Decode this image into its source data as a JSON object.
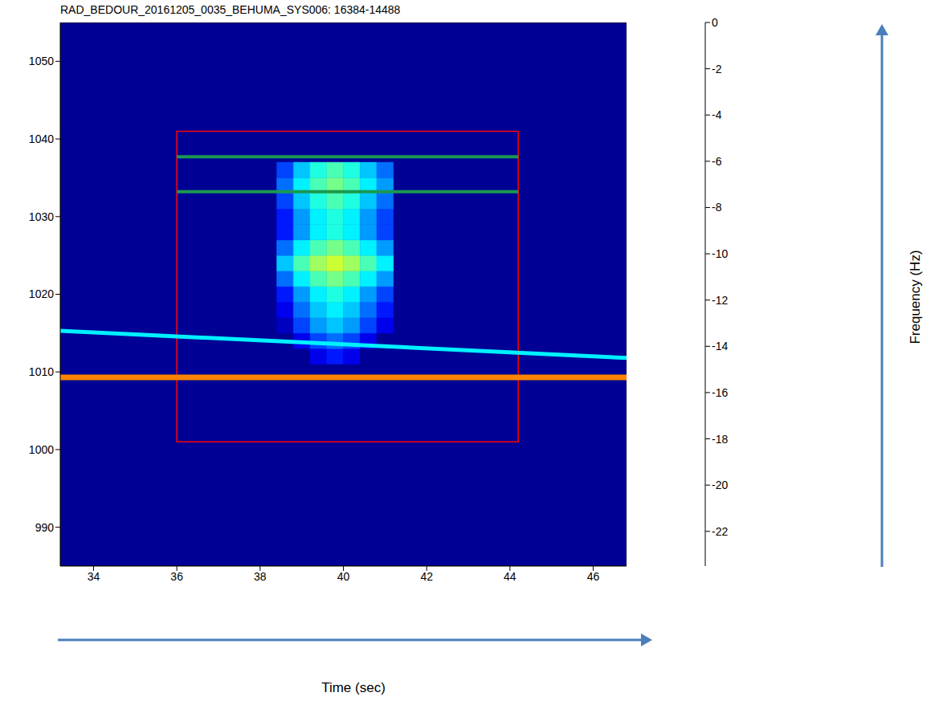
{
  "chart_data": {
    "type": "heatmap",
    "title": "RAD_BEDOUR_20161205_0035_BEHUMA_SYS006: 16384-14488",
    "x_label": "Time (sec)",
    "y_label": "Frequency (Hz)",
    "xlim": [
      33.2,
      46.8
    ],
    "xticks": [
      34,
      36,
      38,
      40,
      42,
      44,
      46
    ],
    "ylim": [
      985,
      1055
    ],
    "yticks": [
      990,
      1000,
      1010,
      1020,
      1030,
      1040,
      1050
    ],
    "background": -23,
    "cells": {
      "x_edges": [
        38.4,
        38.8,
        39.2,
        39.6,
        40.0,
        40.4,
        40.8,
        41.2
      ],
      "y_edges": [
        1011,
        1013,
        1015,
        1017,
        1019,
        1021,
        1023,
        1025,
        1027,
        1029,
        1031,
        1033,
        1035,
        1037
      ],
      "values": [
        [
          -23,
          -23,
          -21,
          -20,
          -21,
          -23,
          -23
        ],
        [
          -23,
          -21,
          -19,
          -18,
          -19,
          -21,
          -23
        ],
        [
          -22,
          -19,
          -17,
          -16,
          -17,
          -19,
          -21
        ],
        [
          -21,
          -18,
          -16,
          -15,
          -16,
          -18,
          -20
        ],
        [
          -20,
          -17,
          -15,
          -14,
          -15,
          -17,
          -19
        ],
        [
          -18,
          -15,
          -13,
          -12,
          -13,
          -15,
          -17
        ],
        [
          -16,
          -13,
          -11,
          -10,
          -11,
          -13,
          -15
        ],
        [
          -18,
          -15,
          -13,
          -12,
          -13,
          -15,
          -17
        ],
        [
          -20,
          -17,
          -15,
          -14,
          -15,
          -17,
          -19
        ],
        [
          -20,
          -17,
          -15,
          -14,
          -15,
          -17,
          -19
        ],
        [
          -19,
          -16,
          -14,
          -13,
          -14,
          -16,
          -18
        ],
        [
          -18,
          -15,
          -13,
          -12,
          -13,
          -15,
          -17
        ],
        [
          -19,
          -16,
          -14,
          -13,
          -14,
          -16,
          -18
        ]
      ]
    },
    "lines": [
      {
        "x": [
          33.2,
          46.8
        ],
        "y": [
          1015.3,
          1011.8
        ],
        "value": -15
      },
      {
        "x": [
          33.2,
          46.8
        ],
        "y": [
          1009.3,
          1009.3
        ],
        "value": -6
      }
    ],
    "box": {
      "x": [
        36,
        44.2
      ],
      "y": [
        1001,
        1041
      ],
      "color": "#ff0000"
    },
    "markers": {
      "x": [
        36,
        44.2
      ],
      "y": [
        1037.7,
        1033.2
      ],
      "color": "#1a9850"
    },
    "colorbar": {
      "clim": [
        -23.5,
        0
      ],
      "ticks": [
        0,
        -2,
        -4,
        -6,
        -8,
        -10,
        -12,
        -14,
        -16,
        -18,
        -20,
        -22
      ]
    }
  }
}
